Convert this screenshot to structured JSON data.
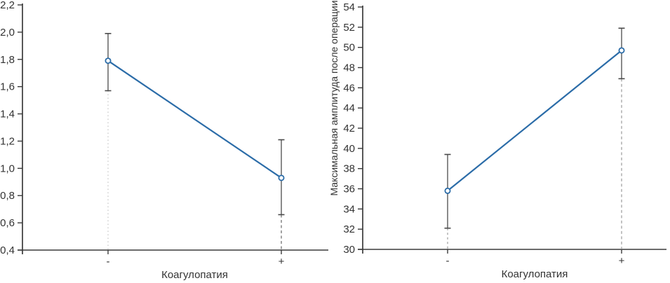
{
  "figure": {
    "description": "Two point plots with vertical error bars versus coagulopathy status (- / +)"
  },
  "colors": {
    "line": "#2b6ca8",
    "marker_fill": "#ffffff",
    "error_bar": "#4a4a4a",
    "axis": "#3a3a3a",
    "text": "#333333",
    "drop_line": "#999999",
    "drop_line_dark": "#666666",
    "drop_line_light": "#c4c4c4"
  },
  "chart_data": [
    {
      "type": "line",
      "title": "",
      "xlabel": "Коагулопатия",
      "ylabel": "",
      "categories": [
        "-",
        "+"
      ],
      "series": [
        {
          "name": "",
          "values": [
            1.79,
            0.93
          ],
          "ci_low": [
            1.57,
            0.66
          ],
          "ci_high": [
            1.99,
            1.21
          ]
        }
      ],
      "ylim": [
        0.4,
        2.2
      ],
      "ytick_step": 0.2,
      "ytick_labels": [
        "0,4",
        "0,6",
        "0,8",
        "1,0",
        "1,2",
        "1,4",
        "1,6",
        "1,8",
        "2,0",
        "2,2"
      ],
      "grid": false,
      "legend": false,
      "marker": "open-circle"
    },
    {
      "type": "line",
      "title": "",
      "xlabel": "Коагулопатия",
      "ylabel": "Максимальная амплитуда после операции",
      "categories": [
        "-",
        "+"
      ],
      "series": [
        {
          "name": "",
          "values": [
            35.8,
            49.7
          ],
          "ci_low": [
            32.1,
            46.9
          ],
          "ci_high": [
            39.4,
            51.9
          ]
        }
      ],
      "ylim": [
        30,
        54
      ],
      "ytick_step": 2,
      "ytick_labels": [
        "30",
        "32",
        "34",
        "36",
        "38",
        "40",
        "42",
        "44",
        "46",
        "48",
        "50",
        "52",
        "54"
      ],
      "grid": false,
      "legend": false,
      "marker": "open-circle"
    }
  ]
}
